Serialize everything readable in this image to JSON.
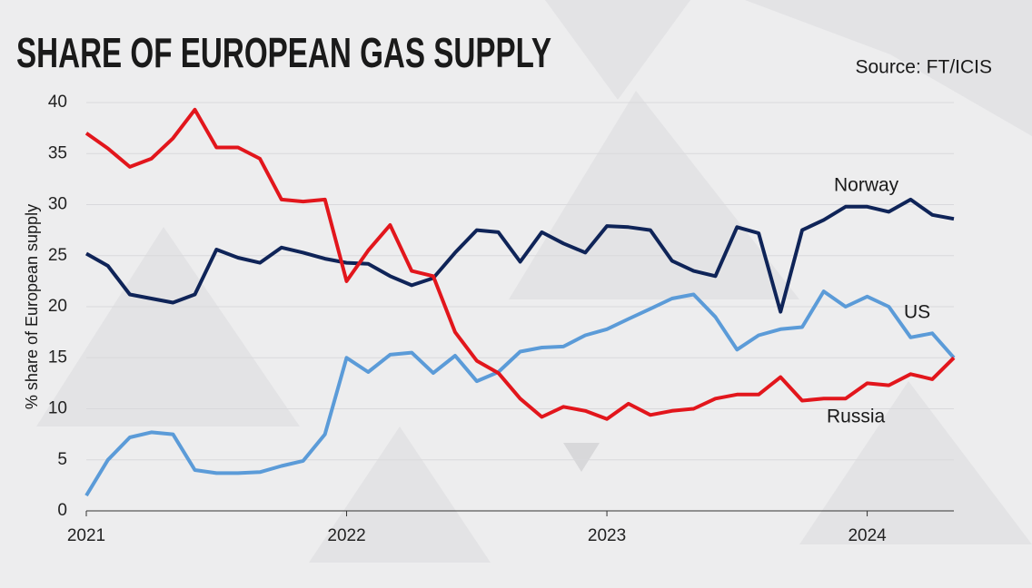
{
  "chart_data": {
    "type": "line",
    "title": "SHARE OF EUROPEAN GAS SUPPLY",
    "source": "Source: FT/ICIS",
    "y_label": "% share of European supply",
    "x": [
      2021,
      2021.083,
      2021.167,
      2021.25,
      2021.333,
      2021.417,
      2021.5,
      2021.583,
      2021.667,
      2021.75,
      2021.833,
      2021.917,
      2022,
      2022.083,
      2022.167,
      2022.25,
      2022.333,
      2022.417,
      2022.5,
      2022.583,
      2022.667,
      2022.75,
      2022.833,
      2022.917,
      2023,
      2023.083,
      2023.167,
      2023.25,
      2023.333,
      2023.417,
      2023.5,
      2023.583,
      2023.667,
      2023.75,
      2023.833,
      2023.917,
      2024,
      2024.083,
      2024.167,
      2024.25,
      2024.333
    ],
    "xlim": [
      2021,
      2024.333
    ],
    "xticks": [
      2021,
      2022,
      2023,
      2024
    ],
    "ylim": [
      0,
      40
    ],
    "yticks": [
      0,
      5,
      10,
      15,
      20,
      25,
      30,
      35,
      40
    ],
    "grid": true,
    "series": [
      {
        "name": "Norway",
        "color": "#0f2458",
        "values": [
          25.2,
          24,
          21.2,
          20.8,
          20.4,
          21.2,
          25.6,
          24.8,
          24.3,
          25.8,
          25.3,
          24.7,
          24.3,
          24.2,
          23,
          22.1,
          22.8,
          25.3,
          27.5,
          27.3,
          24.4,
          27.3,
          26.2,
          25.3,
          27.9,
          27.8,
          27.5,
          24.5,
          23.5,
          23,
          27.8,
          27.2,
          19.5,
          27.5,
          28.5,
          29.8,
          29.8,
          29.3,
          30.5,
          29,
          28.6
        ]
      },
      {
        "name": "US",
        "color": "#5b9bd8",
        "values": [
          1.5,
          5,
          7.2,
          7.7,
          7.5,
          4,
          3.7,
          3.7,
          3.8,
          4.4,
          4.9,
          7.5,
          15,
          13.6,
          15.3,
          15.5,
          13.5,
          15.2,
          12.7,
          13.6,
          15.6,
          16,
          16.1,
          17.2,
          17.8,
          18.8,
          19.8,
          20.8,
          21.2,
          19,
          15.8,
          17.2,
          17.8,
          18,
          21.5,
          20,
          21,
          20,
          17,
          17.4,
          15
        ]
      },
      {
        "name": "Russia",
        "color": "#e2161c",
        "values": [
          37,
          35.5,
          33.7,
          34.5,
          36.5,
          39.3,
          35.6,
          35.6,
          34.5,
          30.5,
          30.3,
          30.5,
          22.5,
          25.5,
          28,
          23.5,
          23,
          17.5,
          14.7,
          13.5,
          11,
          9.2,
          10.2,
          9.8,
          9,
          10.5,
          9.4,
          9.8,
          10,
          11,
          11.4,
          11.4,
          13.1,
          10.8,
          11,
          11,
          12.5,
          12.3,
          13.4,
          12.9,
          15
        ]
      }
    ]
  }
}
